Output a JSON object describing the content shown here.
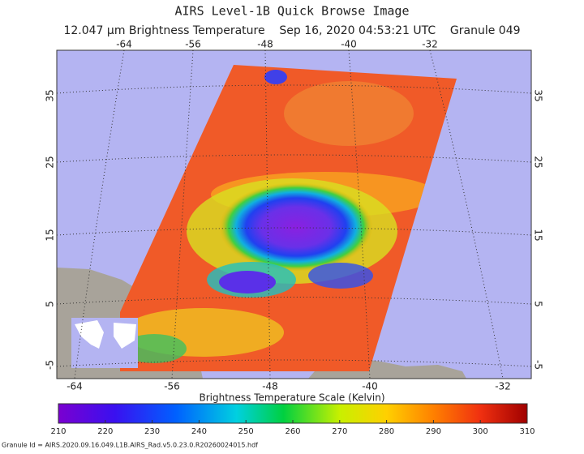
{
  "header": {
    "title": "AIRS Level-1B Quick Browse Image",
    "subtitle": "12.047 µm Brightness Temperature    Sep 16, 2020 04:53:21 UTC    Granule 049"
  },
  "map": {
    "longitude_labels_top": [
      -64,
      -56,
      -48,
      -40,
      -32
    ],
    "longitude_labels_bottom": [
      -64,
      -56,
      -48,
      -40,
      -32
    ],
    "latitude_labels_left": [
      35,
      25,
      15,
      5,
      -5
    ],
    "latitude_labels_right": [
      35,
      25,
      15,
      5,
      -5
    ]
  },
  "colorbar": {
    "title": "Brightness Temperature Scale (Kelvin)",
    "ticks": [
      210,
      220,
      230,
      240,
      250,
      260,
      270,
      280,
      290,
      300,
      310
    ]
  },
  "footer": {
    "granule_id": "Granule Id = AIRS.2020.09.16.049.L1B.AIRS_Rad.v5.0.23.0.R20260024015.hdf"
  }
}
